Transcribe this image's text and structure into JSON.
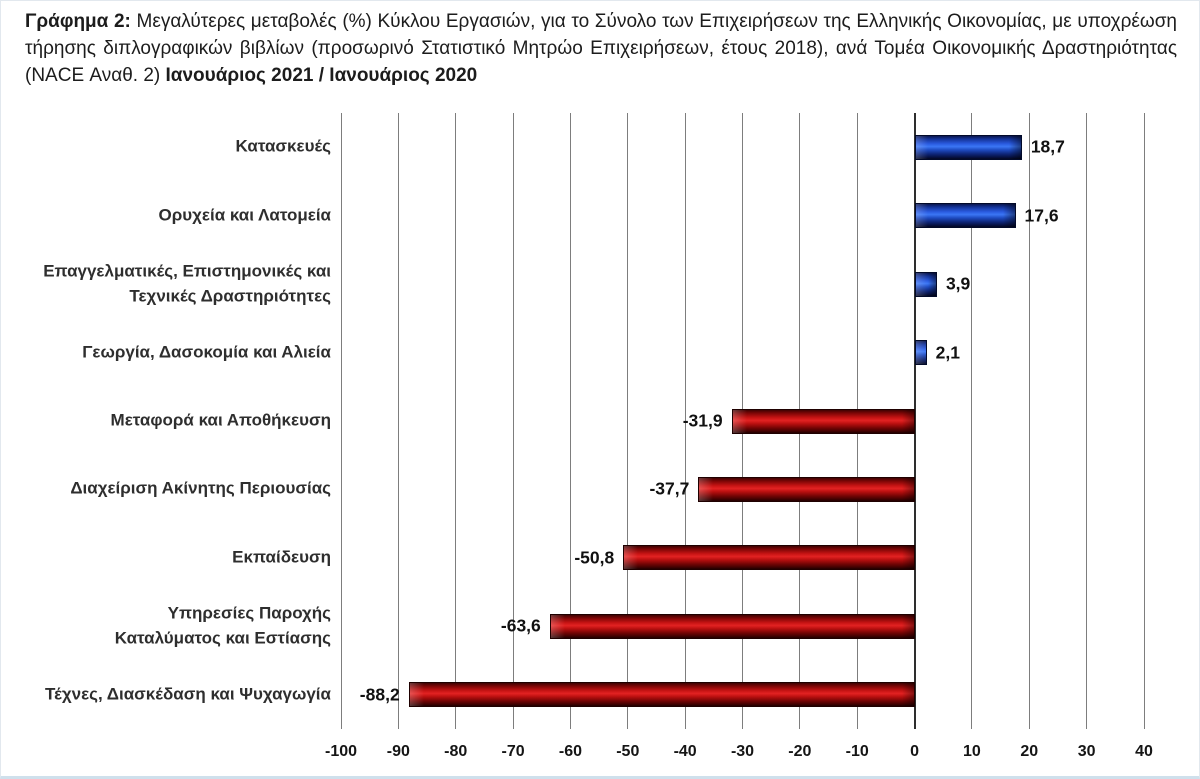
{
  "title": {
    "prefix": "Γράφημα 2:",
    "body": " Μεγαλύτερες μεταβολές (%) Κύκλου Εργασιών, για το Σύνολο των Επιχειρήσεων της Ελληνικής Οικονομίας, με υποχρέωση τήρησης διπλογραφικών βιβλίων (προσωρινό Στατιστικό Μητρώο Επιχειρήσεων, έτους 2018), ανά Τομέα Οικονομικής Δραστηριότητας (NACE Αναθ. 2) ",
    "period": "Ιανουάριος 2021 / Ιανουάριος 2020"
  },
  "chart_data": {
    "type": "bar",
    "orientation": "horizontal",
    "title": "Γράφημα 2: Μεγαλύτερες μεταβολές (%) Κύκλου Εργασιών, για το Σύνολο των Επιχειρήσεων της Ελληνικής Οικονομίας, με υποχρέωση τήρησης διπλογραφικών βιβλίων (προσωρινό Στατιστικό Μητρώο Επιχειρήσεων, έτους 2018), ανά Τομέα Οικονομικής Δραστηριότητας (NACE Αναθ. 2) Ιανουάριος 2021 / Ιανουάριος 2020",
    "categories": [
      "Κατασκευές",
      "Ορυχεία και Λατομεία",
      "Επαγγελματικές, Επιστημονικές και\nΤεχνικές Δραστηριότητες",
      "Γεωργία, Δασοκομία και Αλιεία",
      "Μεταφορά και Αποθήκευση",
      "Διαχείριση Ακίνητης Περιουσίας",
      "Εκπαίδευση",
      "Υπηρεσίες Παροχής\nΚαταλύματος και Εστίασης",
      "Τέχνες, Διασκέδαση και Ψυχαγωγία"
    ],
    "values": [
      18.7,
      17.6,
      3.9,
      2.1,
      -31.9,
      -37.7,
      -50.8,
      -63.6,
      -88.2
    ],
    "value_labels": [
      "18,7",
      "17,6",
      "3,9",
      "2,1",
      "-31,9",
      "-37,7",
      "-50,8",
      "-63,6",
      "-88,2"
    ],
    "xlim": [
      -100,
      40
    ],
    "x_ticks": [
      -100,
      -90,
      -80,
      -70,
      -60,
      -50,
      -40,
      -30,
      -20,
      -10,
      0,
      10,
      20,
      30,
      40
    ],
    "x_tick_labels": [
      "-100",
      "-90",
      "-80",
      "-70",
      "-60",
      "-50",
      "-40",
      "-30",
      "-20",
      "-10",
      "0",
      "10",
      "20",
      "30",
      "40"
    ],
    "grid": "vertical",
    "legend": "none",
    "positive_color": "#1f4cc2",
    "negative_color": "#c81414",
    "gridline_color": "#7d7d7d"
  }
}
